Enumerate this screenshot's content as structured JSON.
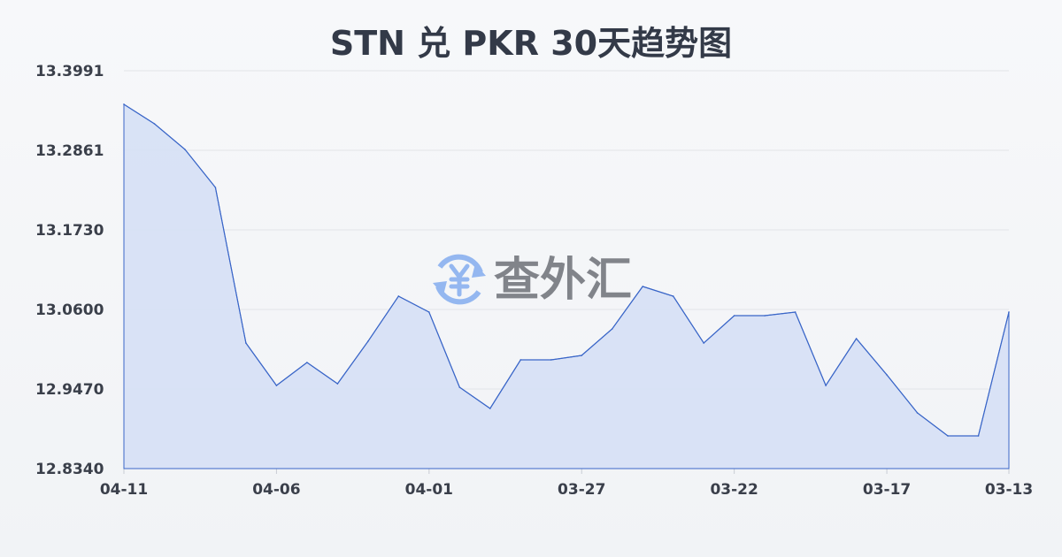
{
  "chart_data": {
    "type": "area",
    "title": "STN 兑 PKR 30天趋势图",
    "xlabel": "",
    "ylabel": "",
    "y_ticks": [
      "13.3991",
      "13.2861",
      "13.1730",
      "13.0600",
      "12.9470",
      "12.8340"
    ],
    "ylim": [
      12.834,
      13.3991
    ],
    "x_ticks": [
      "04-11",
      "04-06",
      "04-01",
      "03-27",
      "03-22",
      "03-17",
      "03-13"
    ],
    "x_order": "newest-left",
    "grid": "horizontal",
    "line_color": "#3a66c8",
    "fill_color": "#d6e0f5",
    "values": [
      13.3514,
      13.3237,
      13.2873,
      13.2333,
      13.0123,
      12.952,
      12.9847,
      12.9545,
      13.0148,
      13.0789,
      13.0563,
      12.9495,
      12.9194,
      12.9885,
      12.9885,
      12.9947,
      13.0324,
      13.0927,
      13.0789,
      13.0123,
      13.0512,
      13.0512,
      13.0563,
      12.952,
      13.0186,
      12.9671,
      12.9131,
      12.8805,
      12.8805,
      13.0563
    ]
  },
  "watermark": {
    "text": "查外汇",
    "icon": "yuan-exchange-icon",
    "color": "#8fb4f0"
  }
}
